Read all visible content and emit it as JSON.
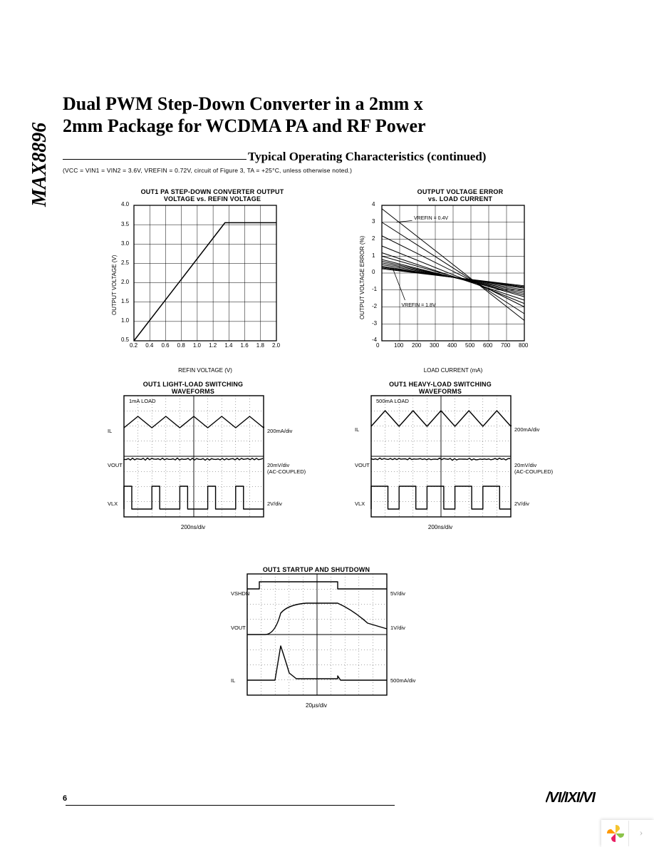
{
  "part_number": "MAX8896",
  "title_line1": "Dual PWM Step-Down Converter in a 2mm x",
  "title_line2": "2mm Package for WCDMA PA and RF Power",
  "section_title": "Typical Operating Characteristics (continued)",
  "conditions": "(VCC = VIN1 = VIN2 = 3.6V, VREFIN = 0.72V, circuit of Figure 3, TA = +25°C, unless otherwise noted.)",
  "page_number": "6",
  "logo": "MAXIM",
  "chart1": {
    "type": "line",
    "title_l1": "OUT1 PA STEP-DOWN CONVERTER OUTPUT",
    "title_l2": "VOLTAGE vs. REFIN VOLTAGE",
    "xlabel": "REFIN VOLTAGE (V)",
    "ylabel": "OUTPUT VOLTAGE (V)",
    "x_ticks": [
      "0.2",
      "0.4",
      "0.6",
      "0.8",
      "1.0",
      "1.2",
      "1.4",
      "1.6",
      "1.8",
      "2.0"
    ],
    "y_ticks": [
      "0.5",
      "1.0",
      "1.5",
      "2.0",
      "2.5",
      "3.0",
      "3.5",
      "4.0"
    ],
    "xlim": [
      0.2,
      2.0
    ],
    "ylim": [
      0.5,
      4.0
    ],
    "line_color": "#000000",
    "grid_color": "#000000",
    "bg_color": "#ffffff",
    "points": [
      [
        0.2,
        0.5
      ],
      [
        1.35,
        3.55
      ],
      [
        2.0,
        3.55
      ]
    ]
  },
  "chart2": {
    "type": "line-multi",
    "title_l1": "OUTPUT VOLTAGE ERROR",
    "title_l2": "vs. LOAD CURRENT",
    "xlabel": "LOAD CURRENT (mA)",
    "ylabel": "OUTPUT VOLTAGE ERROR (%)",
    "x_ticks": [
      "0",
      "100",
      "200",
      "300",
      "400",
      "500",
      "600",
      "700",
      "800"
    ],
    "y_ticks": [
      "-4",
      "-3",
      "-2",
      "-1",
      "0",
      "1",
      "2",
      "3",
      "4"
    ],
    "xlim": [
      0,
      800
    ],
    "ylim": [
      -4,
      4
    ],
    "grid_color": "#000000",
    "bg_color": "#ffffff",
    "line_color": "#000000",
    "annotation_top": "VREFIN = 0.4V",
    "annotation_bot": "VREFIN = 1.8V",
    "series": [
      [
        [
          0,
          3.8
        ],
        [
          800,
          -2.8
        ]
      ],
      [
        [
          0,
          3.0
        ],
        [
          800,
          -2.4
        ]
      ],
      [
        [
          0,
          2.2
        ],
        [
          800,
          -2.0
        ]
      ],
      [
        [
          0,
          1.6
        ],
        [
          800,
          -1.8
        ]
      ],
      [
        [
          0,
          1.2
        ],
        [
          800,
          -1.6
        ]
      ],
      [
        [
          0,
          1.0
        ],
        [
          800,
          -1.4
        ]
      ],
      [
        [
          0,
          0.8
        ],
        [
          800,
          -1.3
        ]
      ],
      [
        [
          0,
          0.7
        ],
        [
          800,
          -1.2
        ]
      ],
      [
        [
          0,
          0.6
        ],
        [
          800,
          -1.1
        ]
      ],
      [
        [
          0,
          0.5
        ],
        [
          800,
          -1.0
        ]
      ],
      [
        [
          0,
          0.4
        ],
        [
          800,
          -0.9
        ]
      ],
      [
        [
          0,
          0.35
        ],
        [
          800,
          -0.85
        ]
      ],
      [
        [
          0,
          0.3
        ],
        [
          800,
          -0.8
        ]
      ],
      [
        [
          0,
          0.25
        ],
        [
          800,
          -0.75
        ]
      ]
    ]
  },
  "chart3": {
    "type": "scope",
    "title_l1": "OUT1 LIGHT-LOAD SWITCHING",
    "title_l2": "WAVEFORMS",
    "load_label": "1mA LOAD",
    "timebase": "200ns/div",
    "ch": [
      {
        "name": "IL",
        "scale": "200mA/div"
      },
      {
        "name": "VOUT",
        "scale": "20mV/div\n(AC-COUPLED)"
      },
      {
        "name": "VLX",
        "scale": "2V/div"
      }
    ]
  },
  "chart4": {
    "type": "scope",
    "title_l1": "OUT1 HEAVY-LOAD SWITCHING",
    "title_l2": "WAVEFORMS",
    "load_label": "500mA LOAD",
    "timebase": "200ns/div",
    "ch": [
      {
        "name": "IL",
        "scale": "200mA/div"
      },
      {
        "name": "VOUT",
        "scale": "20mV/div\n(AC-COUPLED)"
      },
      {
        "name": "VLX",
        "scale": "2V/div"
      }
    ]
  },
  "chart5": {
    "type": "scope",
    "title": "OUT1 STARTUP AND SHUTDOWN",
    "timebase": "20µs/div",
    "ch": [
      {
        "name": "VSHDN",
        "scale": "5V/div"
      },
      {
        "name": "VOUT",
        "scale": "1V/div"
      },
      {
        "name": "IL",
        "scale": "500mA/div"
      }
    ]
  }
}
